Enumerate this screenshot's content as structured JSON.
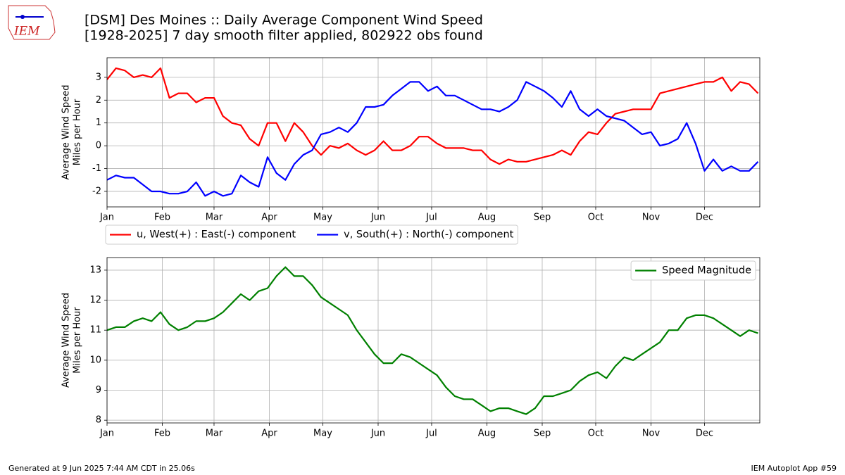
{
  "header": {
    "title": [
      "[DSM] Des Moines :: Daily Average Component Wind Speed",
      "[1928-2025] 7 day smooth filter applied, 802922 obs found"
    ],
    "logo": "IEM"
  },
  "footer": {
    "left": "Generated at 9 Jun 2025 7:44 AM CDT in 25.06s",
    "right": "IEM Autoplot App #59"
  },
  "chart_data": [
    {
      "type": "line",
      "y_label": [
        "Average Wind Speed",
        "Miles per Hour"
      ],
      "x": [
        1,
        6,
        11,
        16,
        21,
        26,
        31,
        36,
        41,
        46,
        51,
        56,
        61,
        66,
        71,
        76,
        81,
        86,
        91,
        96,
        101,
        106,
        111,
        116,
        121,
        126,
        131,
        136,
        141,
        146,
        151,
        156,
        161,
        166,
        171,
        176,
        181,
        186,
        191,
        196,
        201,
        206,
        211,
        216,
        221,
        226,
        231,
        236,
        241,
        246,
        251,
        256,
        261,
        266,
        271,
        276,
        281,
        286,
        291,
        296,
        301,
        306,
        311,
        316,
        321,
        326,
        331,
        336,
        341,
        346,
        351,
        356,
        361,
        366
      ],
      "series": [
        {
          "name": "u, West(+) : East(-) component",
          "color": "#ff0000",
          "values": [
            2.9,
            3.4,
            3.3,
            3.0,
            3.1,
            3.0,
            3.4,
            2.1,
            2.3,
            2.3,
            1.9,
            2.1,
            2.1,
            1.3,
            1.0,
            0.9,
            0.3,
            0.0,
            1.0,
            1.0,
            0.2,
            1.0,
            0.6,
            0.0,
            -0.4,
            0.0,
            -0.1,
            0.1,
            -0.2,
            -0.4,
            -0.2,
            0.2,
            -0.2,
            -0.2,
            0.0,
            0.4,
            0.4,
            0.1,
            -0.1,
            -0.1,
            -0.1,
            -0.2,
            -0.2,
            -0.6,
            -0.8,
            -0.6,
            -0.7,
            -0.7,
            -0.6,
            -0.5,
            -0.4,
            -0.2,
            -0.4,
            0.2,
            0.6,
            0.5,
            1.0,
            1.4,
            1.5,
            1.6,
            1.6,
            1.6,
            2.3,
            2.4,
            2.5,
            2.6,
            2.7,
            2.8,
            2.8,
            3.0,
            2.4,
            2.8,
            2.7,
            2.3
          ]
        },
        {
          "name": "v, South(+) : North(-) component",
          "color": "#0000ff",
          "values": [
            -1.5,
            -1.3,
            -1.4,
            -1.4,
            -1.7,
            -2.0,
            -2.0,
            -2.1,
            -2.1,
            -2.0,
            -1.6,
            -2.2,
            -2.0,
            -2.2,
            -2.1,
            -1.3,
            -1.6,
            -1.8,
            -0.5,
            -1.2,
            -1.5,
            -0.8,
            -0.4,
            -0.2,
            0.5,
            0.6,
            0.8,
            0.6,
            1.0,
            1.7,
            1.7,
            1.8,
            2.2,
            2.5,
            2.8,
            2.8,
            2.4,
            2.6,
            2.2,
            2.2,
            2.0,
            1.8,
            1.6,
            1.6,
            1.5,
            1.7,
            2.0,
            2.8,
            2.6,
            2.4,
            2.1,
            1.7,
            2.4,
            1.6,
            1.3,
            1.6,
            1.3,
            1.2,
            1.1,
            0.8,
            0.5,
            0.6,
            0.0,
            0.1,
            0.3,
            1.0,
            0.1,
            -1.1,
            -0.6,
            -1.1,
            -0.9,
            -1.1,
            -1.1,
            -0.7
          ]
        }
      ],
      "xlim": [
        1,
        367
      ],
      "xticks": [
        {
          "value": 1,
          "label": "Jan"
        },
        {
          "value": 32,
          "label": "Feb"
        },
        {
          "value": 61,
          "label": "Mar"
        },
        {
          "value": 92,
          "label": "Apr"
        },
        {
          "value": 122,
          "label": "May"
        },
        {
          "value": 153,
          "label": "Jun"
        },
        {
          "value": 183,
          "label": "Jul"
        },
        {
          "value": 214,
          "label": "Aug"
        },
        {
          "value": 245,
          "label": "Sep"
        },
        {
          "value": 275,
          "label": "Oct"
        },
        {
          "value": 306,
          "label": "Nov"
        },
        {
          "value": 336,
          "label": "Dec"
        }
      ],
      "ylim": [
        -2.68,
        3.86
      ],
      "yticks": [
        -2,
        -1,
        0,
        1,
        2,
        3
      ],
      "grid": true,
      "legend": "below"
    },
    {
      "type": "line",
      "y_label": [
        "Average Wind Speed",
        "Miles per Hour"
      ],
      "x": [
        1,
        6,
        11,
        16,
        21,
        26,
        31,
        36,
        41,
        46,
        51,
        56,
        61,
        66,
        71,
        76,
        81,
        86,
        91,
        96,
        101,
        106,
        111,
        116,
        121,
        126,
        131,
        136,
        141,
        146,
        151,
        156,
        161,
        166,
        171,
        176,
        181,
        186,
        191,
        196,
        201,
        206,
        211,
        216,
        221,
        226,
        231,
        236,
        241,
        246,
        251,
        256,
        261,
        266,
        271,
        276,
        281,
        286,
        291,
        296,
        301,
        306,
        311,
        316,
        321,
        326,
        331,
        336,
        341,
        346,
        351,
        356,
        361,
        366
      ],
      "series": [
        {
          "name": "Speed Magnitude",
          "color": "#008000",
          "values": [
            11.0,
            11.1,
            11.1,
            11.3,
            11.4,
            11.3,
            11.6,
            11.2,
            11.0,
            11.1,
            11.3,
            11.3,
            11.4,
            11.6,
            11.9,
            12.2,
            12.0,
            12.3,
            12.4,
            12.8,
            13.1,
            12.8,
            12.8,
            12.5,
            12.1,
            11.9,
            11.7,
            11.5,
            11.0,
            10.6,
            10.2,
            9.9,
            9.9,
            10.2,
            10.1,
            9.9,
            9.7,
            9.5,
            9.1,
            8.8,
            8.7,
            8.7,
            8.5,
            8.3,
            8.4,
            8.4,
            8.3,
            8.2,
            8.4,
            8.8,
            8.8,
            8.9,
            9.0,
            9.3,
            9.5,
            9.6,
            9.4,
            9.8,
            10.1,
            10.0,
            10.2,
            10.4,
            10.6,
            11.0,
            11.0,
            11.4,
            11.5,
            11.5,
            11.4,
            11.2,
            11.0,
            10.8,
            11.0,
            10.9
          ]
        }
      ],
      "xlim": [
        1,
        367
      ],
      "xticks": [
        {
          "value": 1,
          "label": "Jan"
        },
        {
          "value": 32,
          "label": "Feb"
        },
        {
          "value": 61,
          "label": "Mar"
        },
        {
          "value": 92,
          "label": "Apr"
        },
        {
          "value": 122,
          "label": "May"
        },
        {
          "value": 153,
          "label": "Jun"
        },
        {
          "value": 183,
          "label": "Jul"
        },
        {
          "value": 214,
          "label": "Aug"
        },
        {
          "value": 245,
          "label": "Sep"
        },
        {
          "value": 275,
          "label": "Oct"
        },
        {
          "value": 306,
          "label": "Nov"
        },
        {
          "value": 336,
          "label": "Dec"
        }
      ],
      "ylim": [
        7.91,
        13.42
      ],
      "yticks": [
        8,
        9,
        10,
        11,
        12,
        13
      ],
      "grid": true,
      "legend": "upper right"
    }
  ]
}
